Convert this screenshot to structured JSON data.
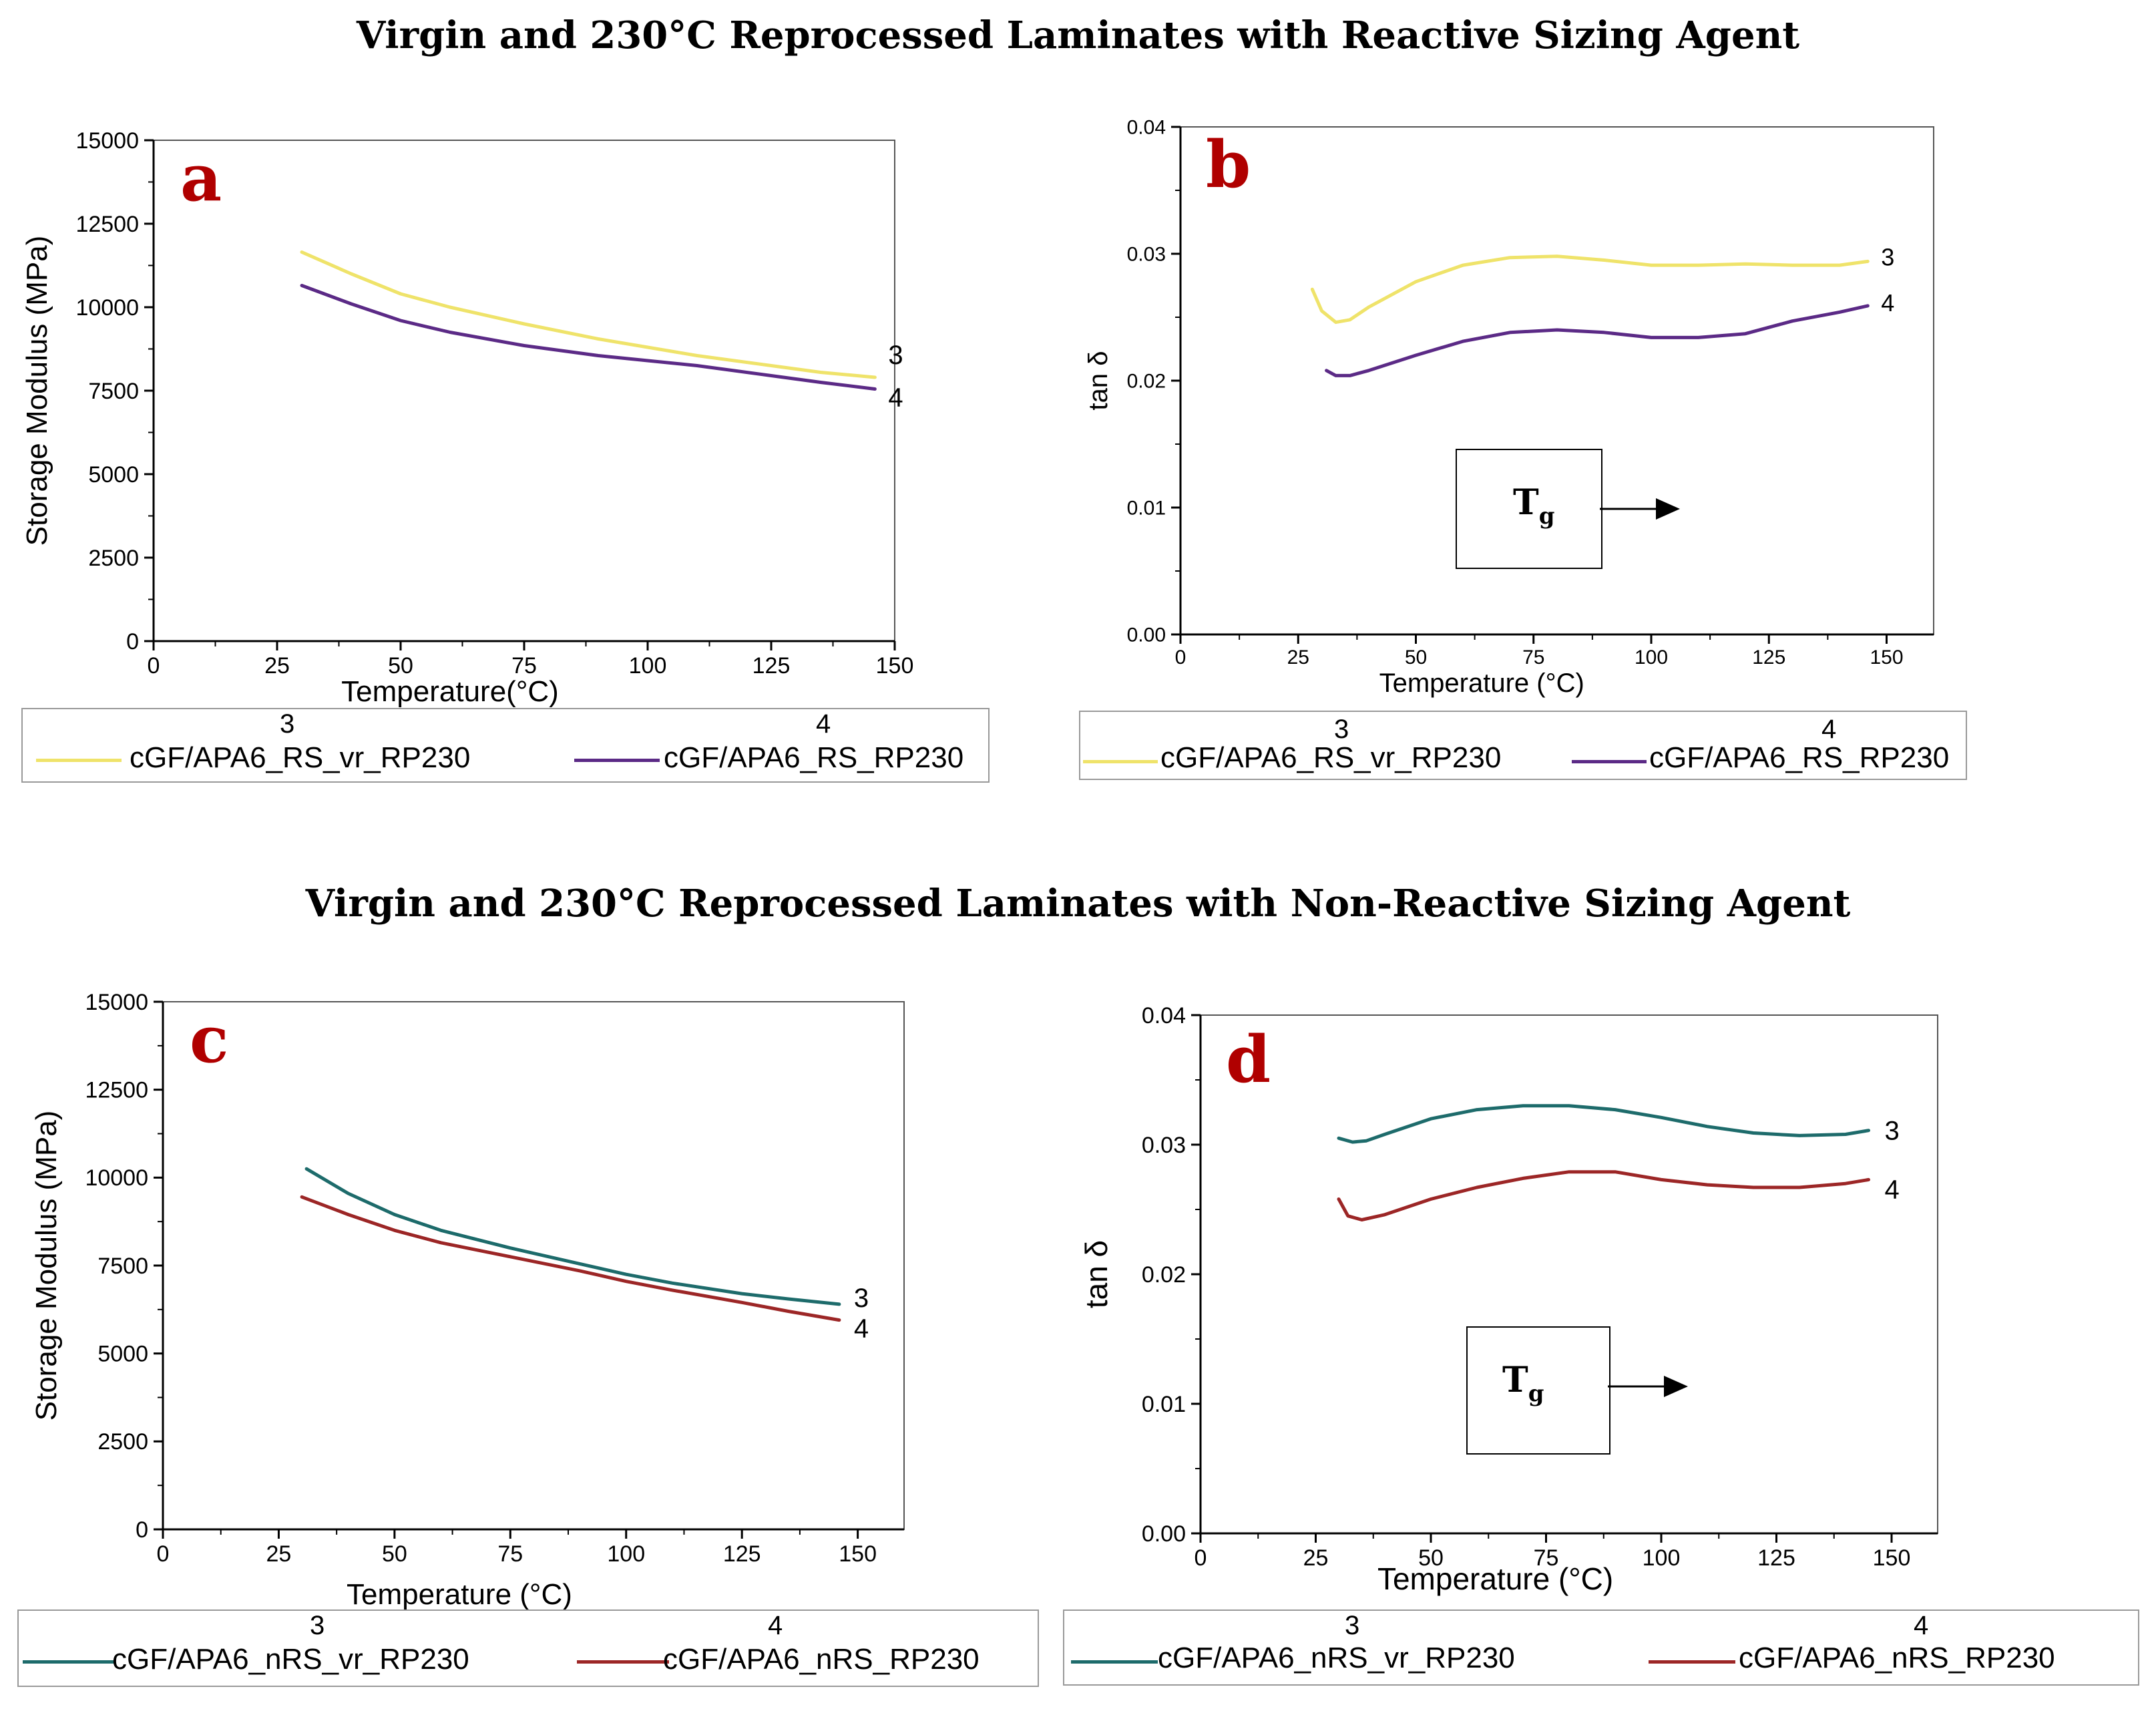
{
  "titles": {
    "top": "Virgin and 230°C Reprocessed Laminates with Reactive Sizing Agent",
    "bottom": "Virgin and 230°C Reprocessed Laminates with Non-Reactive Sizing Agent"
  },
  "chart_data": [
    {
      "id": "a",
      "type": "line",
      "letter": "a",
      "xlabel": "Temperature(°C)",
      "ylabel": "Storage Modulus (MPa)",
      "xlim": [
        0,
        150
      ],
      "ylim": [
        0,
        15000
      ],
      "xticks": [
        "0",
        "25",
        "50",
        "75",
        "100",
        "125",
        "150"
      ],
      "yticks": [
        "0",
        "2500",
        "5000",
        "7500",
        "10000",
        "12500",
        "15000"
      ],
      "series": [
        {
          "name": "cGF/APA6_RS_vr_RP230",
          "number": "3",
          "color": "#efe36a",
          "x": [
            30,
            40,
            50,
            60,
            75,
            90,
            100,
            110,
            125,
            135,
            146
          ],
          "y": [
            11650,
            11000,
            10400,
            10000,
            9500,
            9050,
            8800,
            8550,
            8250,
            8050,
            7900
          ]
        },
        {
          "name": "cGF/APA6_RS_RP230",
          "number": "4",
          "color": "#5b2a86",
          "x": [
            30,
            40,
            50,
            60,
            75,
            90,
            100,
            110,
            125,
            135,
            146
          ],
          "y": [
            10650,
            10100,
            9600,
            9250,
            8850,
            8550,
            8400,
            8250,
            7950,
            7750,
            7550
          ]
        }
      ]
    },
    {
      "id": "b",
      "type": "line",
      "letter": "b",
      "xlabel": "Temperature (°C)",
      "ylabel": "tan δ",
      "xlim": [
        0,
        160
      ],
      "ylim": [
        0,
        0.04
      ],
      "xticks": [
        "0",
        "25",
        "50",
        "75",
        "100",
        "125",
        "150"
      ],
      "yticks": [
        "0.00",
        "0.01",
        "0.02",
        "0.03",
        "0.04"
      ],
      "series": [
        {
          "name": "cGF/APA6_RS_vr_RP230",
          "number": "3",
          "color": "#efe36a",
          "x": [
            28,
            30,
            33,
            36,
            40,
            50,
            60,
            70,
            80,
            90,
            100,
            110,
            120,
            130,
            140,
            146
          ],
          "y": [
            0.0272,
            0.0255,
            0.0246,
            0.0248,
            0.0258,
            0.0278,
            0.0291,
            0.0297,
            0.0298,
            0.0295,
            0.0291,
            0.0291,
            0.0292,
            0.0291,
            0.0291,
            0.0294
          ]
        },
        {
          "name": "cGF/APA6_RS_RP230",
          "number": "4",
          "color": "#5b2a86",
          "x": [
            31,
            33,
            36,
            40,
            50,
            60,
            70,
            80,
            90,
            100,
            110,
            120,
            130,
            140,
            146
          ],
          "y": [
            0.0208,
            0.0204,
            0.0204,
            0.0208,
            0.022,
            0.0231,
            0.0238,
            0.024,
            0.0238,
            0.0234,
            0.0234,
            0.0237,
            0.0247,
            0.0254,
            0.0259
          ]
        }
      ],
      "tg_label": {
        "main": "T",
        "sub": "g"
      }
    },
    {
      "id": "c",
      "type": "line",
      "letter": "c",
      "xlabel": "Temperature (°C)",
      "ylabel": "Storage Modulus (MPa)",
      "xlim": [
        0,
        160
      ],
      "ylim": [
        0,
        15000
      ],
      "xticks": [
        "0",
        "25",
        "50",
        "75",
        "100",
        "125",
        "150"
      ],
      "yticks": [
        "0",
        "2500",
        "5000",
        "7500",
        "10000",
        "12500",
        "15000"
      ],
      "series": [
        {
          "name": "cGF/APA6_nRS_vr_RP230",
          "number": "3",
          "color": "#1d6b6b",
          "x": [
            31,
            40,
            50,
            60,
            75,
            90,
            100,
            110,
            125,
            135,
            146
          ],
          "y": [
            10250,
            9550,
            8950,
            8500,
            8000,
            7550,
            7250,
            7000,
            6700,
            6550,
            6400
          ]
        },
        {
          "name": "cGF/APA6_nRS_RP230",
          "number": "4",
          "color": "#9c2626",
          "x": [
            30,
            40,
            50,
            60,
            75,
            90,
            100,
            110,
            125,
            135,
            146
          ],
          "y": [
            9450,
            8950,
            8500,
            8150,
            7750,
            7350,
            7050,
            6800,
            6450,
            6200,
            5950
          ]
        }
      ]
    },
    {
      "id": "d",
      "type": "line",
      "letter": "d",
      "xlabel": "Temperature (°C)",
      "ylabel": "tan δ",
      "xlim": [
        0,
        160
      ],
      "ylim": [
        0,
        0.04
      ],
      "xticks": [
        "0",
        "25",
        "50",
        "75",
        "100",
        "125",
        "150"
      ],
      "yticks": [
        "0.00",
        "0.01",
        "0.02",
        "0.03",
        "0.04"
      ],
      "series": [
        {
          "name": "cGF/APA6_nRS_vr_RP230",
          "number": "3",
          "color": "#1d6b6b",
          "x": [
            30,
            33,
            36,
            40,
            50,
            60,
            70,
            80,
            90,
            100,
            110,
            120,
            130,
            140,
            145
          ],
          "y": [
            0.0305,
            0.0302,
            0.0303,
            0.0308,
            0.032,
            0.0327,
            0.033,
            0.033,
            0.0327,
            0.0321,
            0.0314,
            0.0309,
            0.0307,
            0.0308,
            0.0311
          ]
        },
        {
          "name": "cGF/APA6_nRS_RP230",
          "number": "4",
          "color": "#9c2626",
          "x": [
            30,
            32,
            35,
            40,
            50,
            60,
            70,
            80,
            90,
            100,
            110,
            120,
            130,
            140,
            145
          ],
          "y": [
            0.0258,
            0.0245,
            0.0242,
            0.0246,
            0.0258,
            0.0267,
            0.0274,
            0.0279,
            0.0279,
            0.0273,
            0.0269,
            0.0267,
            0.0267,
            0.027,
            0.0273
          ]
        }
      ],
      "tg_label": {
        "main": "T",
        "sub": "g"
      }
    }
  ]
}
